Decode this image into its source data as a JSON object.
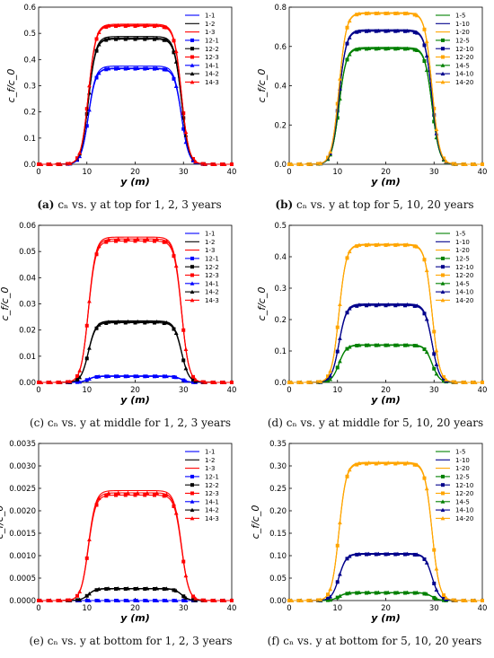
{
  "captions": [
    {
      "tag": "(a)",
      "text": "cₙ vs. y at top for 1, 2, 3 years"
    },
    {
      "tag": "(b)",
      "text": "cₙ vs. y at top for 5, 10, 20 years"
    },
    {
      "tag": "(c)",
      "text": "cₙ vs. y at middle for 1, 2, 3 years"
    },
    {
      "tag": "(d)",
      "text": "cₙ vs. y at middle for 5, 10, 20 years"
    },
    {
      "tag": "(e)",
      "text": "cₙ vs. y at bottom for 1, 2, 3 years"
    },
    {
      "tag": "(f)",
      "text": "cₙ vs. y at bottom for 5, 10, 20 years"
    }
  ],
  "chart_data": [
    {
      "id": "a",
      "type": "line",
      "xlabel": "y (m)",
      "ylabel": "c_f/c_0",
      "xlim": [
        0,
        40
      ],
      "ylim": [
        0,
        0.6
      ],
      "xticks": [
        "0",
        "10",
        "20",
        "30",
        "40"
      ],
      "yticks": [
        "0.0",
        "0.1",
        "0.2",
        "0.3",
        "0.4",
        "0.5",
        "0.6"
      ],
      "legend": [
        "1-1",
        "1-2",
        "1-3",
        "12-1",
        "12-2",
        "12-3",
        "14-1",
        "14-2",
        "14-3"
      ],
      "legend_position": "top-right",
      "series": [
        {
          "name": "1-1",
          "color": "#0000ff",
          "marker": "none",
          "plateau": 0.375
        },
        {
          "name": "1-2",
          "color": "#000000",
          "marker": "none",
          "plateau": 0.488
        },
        {
          "name": "1-3",
          "color": "#ff0000",
          "marker": "none",
          "plateau": 0.535
        },
        {
          "name": "12-1",
          "color": "#0000ff",
          "marker": "square",
          "plateau": 0.365
        },
        {
          "name": "12-2",
          "color": "#000000",
          "marker": "square",
          "plateau": 0.478
        },
        {
          "name": "12-3",
          "color": "#ff0000",
          "marker": "square",
          "plateau": 0.528
        },
        {
          "name": "14-1",
          "color": "#0000ff",
          "marker": "triangle",
          "plateau": 0.367
        },
        {
          "name": "14-2",
          "color": "#000000",
          "marker": "triangle",
          "plateau": 0.482
        },
        {
          "name": "14-3",
          "color": "#ff0000",
          "marker": "triangle",
          "plateau": 0.531
        }
      ]
    },
    {
      "id": "b",
      "type": "line",
      "xlabel": "y (m)",
      "ylabel": "c_f/c_0",
      "xlim": [
        0,
        40
      ],
      "ylim": [
        0,
        0.8
      ],
      "xticks": [
        "0",
        "10",
        "20",
        "30",
        "40"
      ],
      "yticks": [
        "0.0",
        "0.2",
        "0.4",
        "0.6",
        "0.8"
      ],
      "legend": [
        "1-5",
        "1-10",
        "1-20",
        "12-5",
        "12-10",
        "12-20",
        "14-5",
        "14-10",
        "14-20"
      ],
      "legend_position": "top-right",
      "series": [
        {
          "name": "1-5",
          "color": "#008000",
          "marker": "none",
          "plateau": 0.595
        },
        {
          "name": "1-10",
          "color": "#00008b",
          "marker": "none",
          "plateau": 0.685
        },
        {
          "name": "1-20",
          "color": "#ffa500",
          "marker": "none",
          "plateau": 0.772
        },
        {
          "name": "12-5",
          "color": "#008000",
          "marker": "square",
          "plateau": 0.588
        },
        {
          "name": "12-10",
          "color": "#00008b",
          "marker": "square",
          "plateau": 0.678
        },
        {
          "name": "12-20",
          "color": "#ffa500",
          "marker": "square",
          "plateau": 0.768
        },
        {
          "name": "14-5",
          "color": "#008000",
          "marker": "triangle",
          "plateau": 0.59
        },
        {
          "name": "14-10",
          "color": "#00008b",
          "marker": "triangle",
          "plateau": 0.68
        },
        {
          "name": "14-20",
          "color": "#ffa500",
          "marker": "triangle",
          "plateau": 0.77
        }
      ]
    },
    {
      "id": "c",
      "type": "line",
      "xlabel": "y (m)",
      "ylabel": "c_f/c_0",
      "xlim": [
        0,
        40
      ],
      "ylim": [
        0,
        0.06
      ],
      "xticks": [
        "0",
        "10",
        "20",
        "30",
        "40"
      ],
      "yticks": [
        "0.00",
        "0.01",
        "0.02",
        "0.03",
        "0.04",
        "0.05",
        "0.06"
      ],
      "legend": [
        "1-1",
        "1-2",
        "1-3",
        "12-1",
        "12-2",
        "12-3",
        "14-1",
        "14-2",
        "14-3"
      ],
      "legend_position": "top-right",
      "series": [
        {
          "name": "1-1",
          "color": "#0000ff",
          "marker": "none",
          "plateau": 0.0025
        },
        {
          "name": "1-2",
          "color": "#000000",
          "marker": "none",
          "plateau": 0.0235
        },
        {
          "name": "1-3",
          "color": "#ff0000",
          "marker": "none",
          "plateau": 0.0555
        },
        {
          "name": "12-1",
          "color": "#0000ff",
          "marker": "square",
          "plateau": 0.0023
        },
        {
          "name": "12-2",
          "color": "#000000",
          "marker": "square",
          "plateau": 0.0228
        },
        {
          "name": "12-3",
          "color": "#ff0000",
          "marker": "square",
          "plateau": 0.054
        },
        {
          "name": "14-1",
          "color": "#0000ff",
          "marker": "triangle",
          "plateau": 0.0024
        },
        {
          "name": "14-2",
          "color": "#000000",
          "marker": "triangle",
          "plateau": 0.0232
        },
        {
          "name": "14-3",
          "color": "#ff0000",
          "marker": "triangle",
          "plateau": 0.0548
        }
      ]
    },
    {
      "id": "d",
      "type": "line",
      "xlabel": "y (m)",
      "ylabel": "c_f/c_0",
      "xlim": [
        0,
        40
      ],
      "ylim": [
        0,
        0.5
      ],
      "xticks": [
        "0",
        "10",
        "20",
        "30",
        "40"
      ],
      "yticks": [
        "0.0",
        "0.1",
        "0.2",
        "0.3",
        "0.4",
        "0.5"
      ],
      "legend": [
        "1-5",
        "1-10",
        "1-20",
        "12-5",
        "12-10",
        "12-20",
        "14-5",
        "14-10",
        "14-20"
      ],
      "legend_position": "top-right",
      "series": [
        {
          "name": "1-5",
          "color": "#008000",
          "marker": "none",
          "plateau": 0.12
        },
        {
          "name": "1-10",
          "color": "#00008b",
          "marker": "none",
          "plateau": 0.25
        },
        {
          "name": "1-20",
          "color": "#ffa500",
          "marker": "none",
          "plateau": 0.44
        },
        {
          "name": "12-5",
          "color": "#008000",
          "marker": "square",
          "plateau": 0.118
        },
        {
          "name": "12-10",
          "color": "#00008b",
          "marker": "square",
          "plateau": 0.245
        },
        {
          "name": "12-20",
          "color": "#ffa500",
          "marker": "square",
          "plateau": 0.437
        },
        {
          "name": "14-5",
          "color": "#008000",
          "marker": "triangle",
          "plateau": 0.119
        },
        {
          "name": "14-10",
          "color": "#00008b",
          "marker": "triangle",
          "plateau": 0.248
        },
        {
          "name": "14-20",
          "color": "#ffa500",
          "marker": "triangle",
          "plateau": 0.439
        }
      ]
    },
    {
      "id": "e",
      "type": "line",
      "xlabel": "y (m)",
      "ylabel": "c_f/c_0",
      "xlim": [
        0,
        40
      ],
      "ylim": [
        0,
        0.0035
      ],
      "xticks": [
        "0",
        "10",
        "20",
        "30",
        "40"
      ],
      "yticks": [
        "0.0000",
        "0.0005",
        "0.0010",
        "0.0015",
        "0.0020",
        "0.0025",
        "0.0030",
        "0.0035"
      ],
      "legend": [
        "1-1",
        "1-2",
        "1-3",
        "12-1",
        "12-2",
        "12-3",
        "14-1",
        "14-2",
        "14-3"
      ],
      "legend_position": "top-right",
      "series": [
        {
          "name": "1-1",
          "color": "#0000ff",
          "marker": "none",
          "plateau": 0.0
        },
        {
          "name": "1-2",
          "color": "#000000",
          "marker": "none",
          "plateau": 0.00027
        },
        {
          "name": "1-3",
          "color": "#ff0000",
          "marker": "none",
          "plateau": 0.00245
        },
        {
          "name": "12-1",
          "color": "#0000ff",
          "marker": "square",
          "plateau": 0.0
        },
        {
          "name": "12-2",
          "color": "#000000",
          "marker": "square",
          "plateau": 0.00026
        },
        {
          "name": "12-3",
          "color": "#ff0000",
          "marker": "square",
          "plateau": 0.00235
        },
        {
          "name": "14-1",
          "color": "#0000ff",
          "marker": "triangle",
          "plateau": 0.0
        },
        {
          "name": "14-2",
          "color": "#000000",
          "marker": "triangle",
          "plateau": 0.00027
        },
        {
          "name": "14-3",
          "color": "#ff0000",
          "marker": "triangle",
          "plateau": 0.0024
        }
      ]
    },
    {
      "id": "f",
      "type": "line",
      "xlabel": "y (m)",
      "ylabel": "c_f/c_0",
      "xlim": [
        0,
        40
      ],
      "ylim": [
        0,
        0.35
      ],
      "xticks": [
        "0",
        "10",
        "20",
        "30",
        "40"
      ],
      "yticks": [
        "0.00",
        "0.05",
        "0.10",
        "0.15",
        "0.20",
        "0.25",
        "0.30",
        "0.35"
      ],
      "legend": [
        "1-5",
        "1-10",
        "1-20",
        "12-5",
        "12-10",
        "12-20",
        "14-5",
        "14-10",
        "14-20"
      ],
      "legend_position": "top-right",
      "series": [
        {
          "name": "1-5",
          "color": "#008000",
          "marker": "none",
          "plateau": 0.018
        },
        {
          "name": "1-10",
          "color": "#00008b",
          "marker": "none",
          "plateau": 0.105
        },
        {
          "name": "1-20",
          "color": "#ffa500",
          "marker": "none",
          "plateau": 0.308
        },
        {
          "name": "12-5",
          "color": "#008000",
          "marker": "square",
          "plateau": 0.017
        },
        {
          "name": "12-10",
          "color": "#00008b",
          "marker": "square",
          "plateau": 0.103
        },
        {
          "name": "12-20",
          "color": "#ffa500",
          "marker": "square",
          "plateau": 0.305
        },
        {
          "name": "14-5",
          "color": "#008000",
          "marker": "triangle",
          "plateau": 0.018
        },
        {
          "name": "14-10",
          "color": "#00008b",
          "marker": "triangle",
          "plateau": 0.104
        },
        {
          "name": "14-20",
          "color": "#ffa500",
          "marker": "triangle",
          "plateau": 0.307
        }
      ]
    }
  ]
}
